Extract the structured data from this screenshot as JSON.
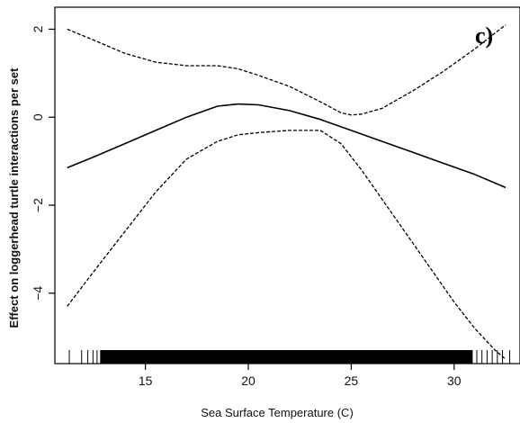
{
  "chart_data": {
    "type": "line",
    "title": "",
    "panel_label": "c)",
    "xlabel": "Sea Surface Temperature (C)",
    "ylabel": "Effect on loggerhead turtle interactions per set",
    "xlim": [
      10.6,
      33.2
    ],
    "ylim": [
      -5.6,
      2.5
    ],
    "x_ticks": [
      15,
      20,
      25,
      30
    ],
    "y_ticks": [
      -4,
      -2,
      0,
      2
    ],
    "y_tick_labels": [
      "−4",
      "−2",
      "0",
      "2"
    ],
    "grid": false,
    "legend": "none",
    "series": [
      {
        "style": "solid",
        "x": [
          11.2,
          12.5,
          14.0,
          15.5,
          17.0,
          18.5,
          19.5,
          20.5,
          22.0,
          23.5,
          25.0,
          26.5,
          28.0,
          29.5,
          31.0,
          32.5
        ],
        "y": [
          -1.15,
          -0.9,
          -0.6,
          -0.3,
          0.0,
          0.25,
          0.3,
          0.28,
          0.15,
          -0.05,
          -0.3,
          -0.55,
          -0.8,
          -1.05,
          -1.3,
          -1.6
        ]
      },
      {
        "style": "dashed",
        "x": [
          11.2,
          12.5,
          14.0,
          15.5,
          17.0,
          18.5,
          19.5,
          20.5,
          22.0,
          23.5,
          24.5,
          25.0,
          25.5,
          26.5,
          28.0,
          29.5,
          31.0,
          32.5
        ],
        "y": [
          2.0,
          1.75,
          1.45,
          1.25,
          1.17,
          1.17,
          1.1,
          0.95,
          0.7,
          0.35,
          0.1,
          0.05,
          0.07,
          0.2,
          0.6,
          1.05,
          1.55,
          2.1
        ]
      },
      {
        "style": "dashed",
        "x": [
          11.2,
          12.5,
          14.0,
          15.5,
          17.0,
          18.5,
          19.5,
          20.5,
          22.0,
          23.5,
          24.5,
          25.5,
          27.0,
          28.5,
          30.0,
          31.0,
          32.0,
          32.5
        ],
        "y": [
          -4.3,
          -3.5,
          -2.6,
          -1.7,
          -0.95,
          -0.55,
          -0.4,
          -0.35,
          -0.3,
          -0.3,
          -0.6,
          -1.2,
          -2.2,
          -3.2,
          -4.2,
          -4.8,
          -5.3,
          -5.5
        ]
      }
    ],
    "rug": {
      "dense_range": [
        12.8,
        30.9
      ],
      "sparse_x": [
        11.3,
        11.9,
        12.2,
        12.45,
        12.65,
        31.1,
        31.35,
        31.6,
        31.85,
        32.1,
        32.35,
        32.7
      ]
    }
  }
}
